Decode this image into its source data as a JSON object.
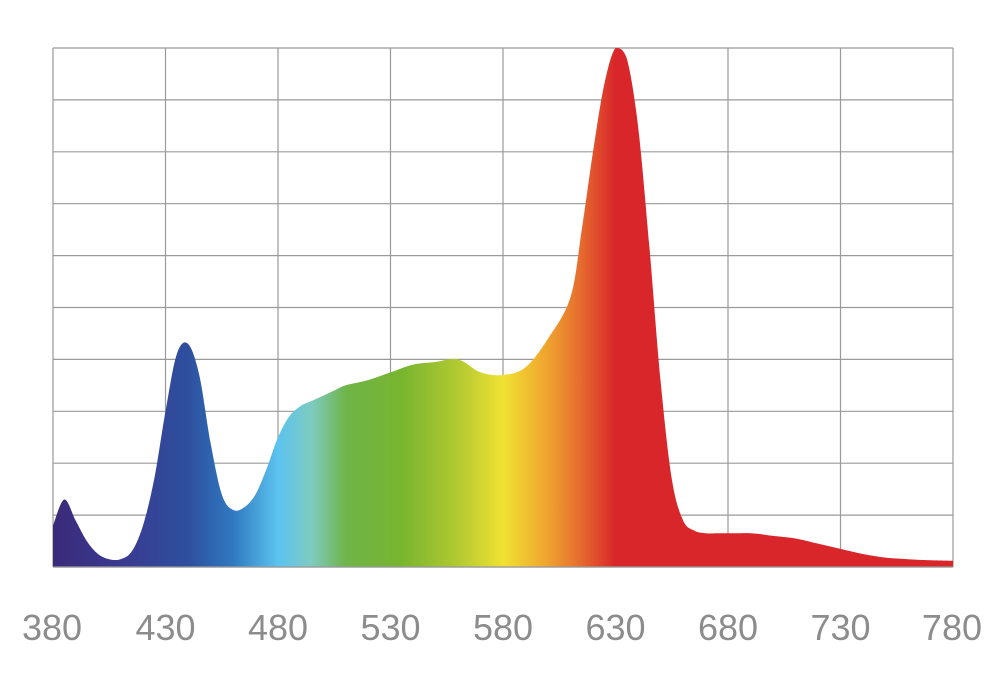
{
  "chart_data": {
    "type": "area",
    "title": "",
    "xlabel": "",
    "ylabel": "",
    "xlim": [
      380,
      780
    ],
    "ylim": [
      0,
      1
    ],
    "grid": true,
    "grid_rows": 10,
    "x_ticks": [
      380,
      430,
      480,
      530,
      580,
      630,
      680,
      730,
      780
    ],
    "x_tick_labels": [
      "380",
      "430",
      "480",
      "530",
      "580",
      "630",
      "680",
      "730",
      "780"
    ],
    "series": [
      {
        "x": [
          380,
          385,
          390,
          395,
          400,
          405,
          410,
          415,
          420,
          425,
          430,
          435,
          440,
          445,
          450,
          455,
          460,
          465,
          470,
          475,
          480,
          485,
          490,
          495,
          500,
          505,
          510,
          520,
          530,
          540,
          550,
          560,
          570,
          580,
          590,
          600,
          610,
          615,
          620,
          625,
          630,
          635,
          640,
          645,
          650,
          655,
          660,
          665,
          670,
          675,
          680,
          685,
          690,
          695,
          700,
          710,
          720,
          730,
          740,
          750,
          760,
          770,
          780
        ],
        "y": [
          0.08,
          0.13,
          0.09,
          0.05,
          0.025,
          0.015,
          0.015,
          0.03,
          0.08,
          0.17,
          0.3,
          0.41,
          0.43,
          0.37,
          0.24,
          0.14,
          0.11,
          0.115,
          0.14,
          0.19,
          0.25,
          0.29,
          0.31,
          0.32,
          0.33,
          0.34,
          0.35,
          0.36,
          0.375,
          0.39,
          0.395,
          0.4,
          0.375,
          0.37,
          0.385,
          0.44,
          0.52,
          0.65,
          0.8,
          0.93,
          1.0,
          0.98,
          0.85,
          0.62,
          0.36,
          0.17,
          0.09,
          0.07,
          0.065,
          0.065,
          0.065,
          0.065,
          0.065,
          0.063,
          0.06,
          0.055,
          0.045,
          0.035,
          0.025,
          0.018,
          0.015,
          0.013,
          0.012
        ]
      }
    ],
    "gradient_stops": [
      {
        "wavelength": 380,
        "color": "#3b2a7a"
      },
      {
        "wavelength": 410,
        "color": "#3a3a90"
      },
      {
        "wavelength": 440,
        "color": "#2e4f9e"
      },
      {
        "wavelength": 460,
        "color": "#2f79c0"
      },
      {
        "wavelength": 480,
        "color": "#5cc3ef"
      },
      {
        "wavelength": 495,
        "color": "#7ecbc0"
      },
      {
        "wavelength": 510,
        "color": "#6fb44a"
      },
      {
        "wavelength": 535,
        "color": "#78b52f"
      },
      {
        "wavelength": 560,
        "color": "#b2c931"
      },
      {
        "wavelength": 580,
        "color": "#f0e233"
      },
      {
        "wavelength": 600,
        "color": "#efa22f"
      },
      {
        "wavelength": 615,
        "color": "#e56a2e"
      },
      {
        "wavelength": 630,
        "color": "#d8262a"
      },
      {
        "wavelength": 780,
        "color": "#d8262a"
      }
    ],
    "grid_color": "#9a9a9a",
    "tick_color": "#8c8c8c"
  }
}
